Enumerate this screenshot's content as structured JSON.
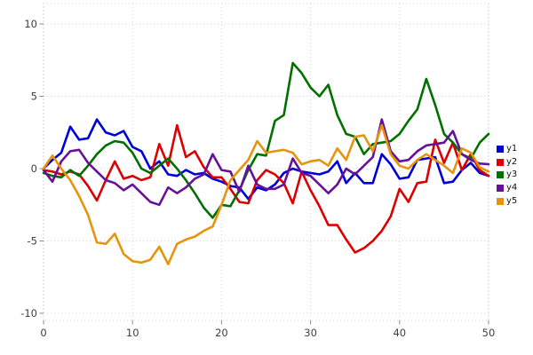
{
  "chart_data": {
    "type": "line",
    "title": "",
    "xlabel": "",
    "ylabel": "",
    "xlim": [
      0,
      50
    ],
    "ylim": [
      -10,
      10
    ],
    "x_ticks": [
      0,
      10,
      20,
      30,
      40,
      50
    ],
    "y_ticks": [
      -10,
      -5,
      0,
      5,
      10
    ],
    "grid": "dotted",
    "legend_position": "right",
    "background_color": "#ffffff",
    "grid_color": "#d6d6d6",
    "tick_label_color": "#404040",
    "legend_text_color": "#111111",
    "x": [
      0,
      1,
      2,
      3,
      4,
      5,
      6,
      7,
      8,
      9,
      10,
      11,
      12,
      13,
      14,
      15,
      16,
      17,
      18,
      19,
      20,
      21,
      22,
      23,
      24,
      25,
      26,
      27,
      28,
      29,
      30,
      31,
      32,
      33,
      34,
      35,
      36,
      37,
      38,
      39,
      40,
      41,
      42,
      43,
      44,
      45,
      46,
      47,
      48,
      49,
      50
    ],
    "series": [
      {
        "name": "y1",
        "color": "#0000d5",
        "values": [
          0,
          0.6,
          1.1,
          2.9,
          2.0,
          2.1,
          3.4,
          2.5,
          2.3,
          2.6,
          1.5,
          1.2,
          0.0,
          0.5,
          -0.4,
          -0.5,
          -0.1,
          -0.4,
          -0.3,
          -0.7,
          -0.9,
          -1.2,
          -1.3,
          -2.1,
          -1.3,
          -1.5,
          -1.1,
          -0.3,
          0.0,
          -0.2,
          -0.3,
          -0.4,
          -0.2,
          0.5,
          -1.0,
          -0.3,
          -1.0,
          -1.0,
          1.0,
          0.3,
          -0.7,
          -0.6,
          0.6,
          0.7,
          0.8,
          -1.0,
          -0.9,
          -0.1,
          0.4,
          -0.3,
          -0.5
        ]
      },
      {
        "name": "y2",
        "color": "#dd0000",
        "values": [
          -0.1,
          -0.2,
          -0.4,
          -0.2,
          -0.4,
          -1.2,
          -2.2,
          -0.8,
          0.5,
          -0.7,
          -0.5,
          -0.8,
          -0.6,
          1.7,
          0.2,
          3.0,
          0.8,
          1.2,
          0.1,
          -0.6,
          -0.6,
          -1.4,
          -2.3,
          -2.4,
          -0.8,
          -0.1,
          -0.4,
          -1.0,
          -2.4,
          -0.2,
          -1.5,
          -2.6,
          -3.9,
          -3.9,
          -4.9,
          -5.8,
          -5.5,
          -5.0,
          -4.3,
          -3.3,
          -1.4,
          -2.3,
          -1.0,
          -0.9,
          2.0,
          0.4,
          1.8,
          -0.1,
          1.0,
          -0.1,
          -0.5
        ]
      },
      {
        "name": "y3",
        "color": "#007000",
        "values": [
          -0.3,
          -0.5,
          -0.6,
          -0.1,
          -0.5,
          0.2,
          1.0,
          1.6,
          1.9,
          1.8,
          1.1,
          0.0,
          -0.3,
          0.2,
          0.7,
          0.0,
          -0.8,
          -1.7,
          -2.7,
          -3.4,
          -2.5,
          -2.6,
          -1.5,
          -0.1,
          1.0,
          0.9,
          3.3,
          3.7,
          7.3,
          6.6,
          5.6,
          5.0,
          5.8,
          3.7,
          2.4,
          2.2,
          1.0,
          1.7,
          1.8,
          1.9,
          2.4,
          3.3,
          4.1,
          6.2,
          4.4,
          2.4,
          1.8,
          1.0,
          0.7,
          1.8,
          2.4
        ]
      },
      {
        "name": "y4",
        "color": "#661199",
        "values": [
          -0.1,
          -0.9,
          0.5,
          1.2,
          1.3,
          0.4,
          -0.2,
          -0.8,
          -1.0,
          -1.5,
          -1.1,
          -1.7,
          -2.3,
          -2.5,
          -1.3,
          -1.7,
          -1.3,
          -0.7,
          -0.4,
          1.0,
          -0.1,
          -0.2,
          -1.6,
          0.2,
          -1.1,
          -1.4,
          -1.4,
          -1.1,
          0.7,
          -0.3,
          -0.5,
          -1.1,
          -1.7,
          -1.1,
          0.0,
          -0.4,
          0.2,
          0.8,
          3.4,
          1.2,
          0.5,
          0.6,
          1.2,
          1.6,
          1.7,
          1.8,
          2.6,
          1.0,
          0.6,
          0.35,
          0.3
        ]
      },
      {
        "name": "y5",
        "color": "#e6940e",
        "values": [
          0.0,
          0.9,
          0.0,
          -0.8,
          -1.9,
          -3.2,
          -5.1,
          -5.2,
          -4.5,
          -5.9,
          -6.4,
          -6.5,
          -6.3,
          -5.4,
          -6.6,
          -5.2,
          -4.9,
          -4.7,
          -4.3,
          -4.0,
          -2.5,
          -0.8,
          -0.1,
          0.6,
          1.9,
          1.1,
          1.2,
          1.3,
          1.1,
          0.3,
          0.5,
          0.6,
          0.2,
          1.4,
          0.6,
          2.2,
          2.3,
          1.2,
          3.0,
          1.0,
          0.2,
          0.0,
          0.6,
          1.0,
          0.6,
          0.2,
          -0.3,
          1.4,
          1.1,
          0.1,
          -0.2
        ]
      }
    ]
  }
}
